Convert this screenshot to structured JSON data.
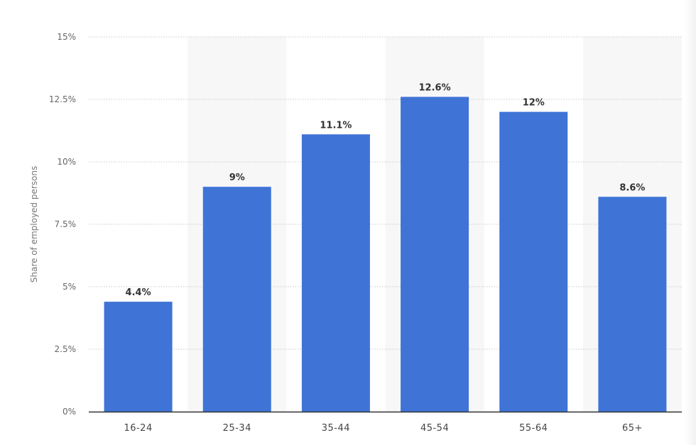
{
  "chart_data": {
    "type": "bar",
    "categories": [
      "16-24",
      "25-34",
      "35-44",
      "45-54",
      "55-64",
      "65+"
    ],
    "values": [
      4.4,
      9,
      11.1,
      12.6,
      12,
      8.6
    ],
    "value_labels": [
      "4.4%",
      "9%",
      "11.1%",
      "12.6%",
      "12%",
      "8.6%"
    ],
    "title": "",
    "xlabel": "",
    "ylabel": "Share of employed persons",
    "ylim": [
      0,
      15
    ],
    "yticks": [
      0,
      2.5,
      5,
      7.5,
      10,
      12.5,
      15
    ],
    "ytick_labels": [
      "0%",
      "2.5%",
      "5%",
      "7.5%",
      "10%",
      "12.5%",
      "15%"
    ],
    "grid": true,
    "legend": "none",
    "colors": {
      "bar": "#3f74d6",
      "band": "#f7f7f7",
      "grid": "#c8c8c8",
      "axis": "#333333"
    }
  }
}
